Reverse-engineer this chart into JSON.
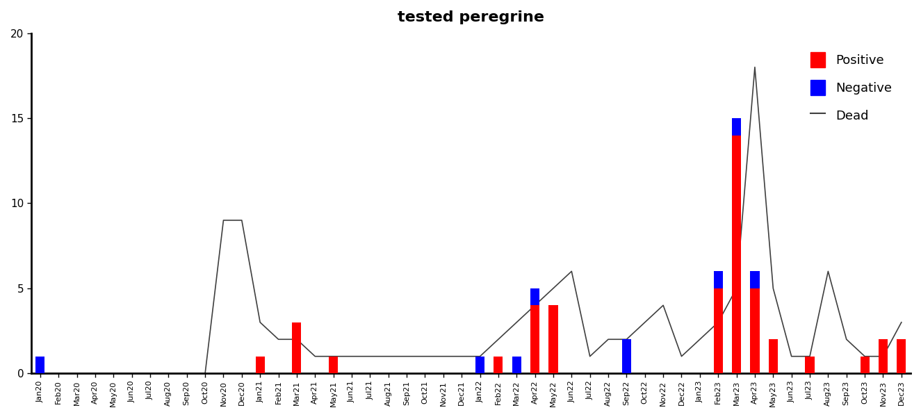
{
  "title": "tested peregrine",
  "title_fontsize": 16,
  "title_fontweight": "bold",
  "labels": [
    "Jan20",
    "Feb20",
    "Mar20",
    "Apr20",
    "May20",
    "Jun20",
    "Jul20",
    "Aug20",
    "Sep20",
    "Oct20",
    "Nov20",
    "Dec20",
    "Jan21",
    "Feb21",
    "Mar21",
    "Apr21",
    "May21",
    "Jun21",
    "Jul21",
    "Aug21",
    "Sep21",
    "Oct21",
    "Nov21",
    "Dec21",
    "Jan22",
    "Feb22",
    "Mar22",
    "Apr22",
    "May22",
    "Jun22",
    "Jul22",
    "Aug22",
    "Sep22",
    "Oct22",
    "Nov22",
    "Dec22",
    "Jan23",
    "Feb23",
    "Mar23",
    "Apr23",
    "May23",
    "Jun23",
    "Jul23",
    "Aug23",
    "Sep23",
    "Oct23",
    "Nov23",
    "Dec23"
  ],
  "positive": [
    0,
    0,
    0,
    0,
    0,
    0,
    0,
    0,
    0,
    0,
    0,
    0,
    1,
    0,
    3,
    0,
    1,
    0,
    0,
    0,
    0,
    0,
    0,
    0,
    0,
    1,
    0,
    4,
    4,
    0,
    0,
    0,
    0,
    0,
    0,
    0,
    0,
    5,
    14,
    5,
    2,
    0,
    1,
    0,
    0,
    1,
    2,
    2
  ],
  "negative": [
    1,
    0,
    0,
    0,
    0,
    0,
    0,
    0,
    0,
    0,
    0,
    0,
    0,
    0,
    0,
    0,
    0,
    0,
    0,
    0,
    0,
    0,
    0,
    0,
    1,
    0,
    1,
    1,
    0,
    0,
    0,
    0,
    2,
    0,
    0,
    0,
    0,
    1,
    1,
    1,
    0,
    0,
    0,
    0,
    0,
    0,
    0,
    0
  ],
  "dead": [
    0,
    0,
    0,
    0,
    0,
    0,
    0,
    0,
    0,
    0,
    9,
    9,
    3,
    2,
    2,
    1,
    1,
    1,
    1,
    1,
    1,
    1,
    1,
    1,
    1,
    2,
    3,
    4,
    5,
    6,
    1,
    2,
    2,
    3,
    4,
    1,
    2,
    3,
    5,
    18,
    5,
    1,
    1,
    6,
    2,
    1,
    1,
    3
  ],
  "ylim": [
    0,
    20
  ],
  "yticks": [
    0,
    5,
    10,
    15,
    20
  ],
  "positive_color": "#ff0000",
  "negative_color": "#0000ff",
  "dead_color": "#404040",
  "background_color": "#ffffff",
  "tick_label_fontsize": 8,
  "figwidth": 13.25,
  "figheight": 6.0,
  "legend_fontsize": 13
}
